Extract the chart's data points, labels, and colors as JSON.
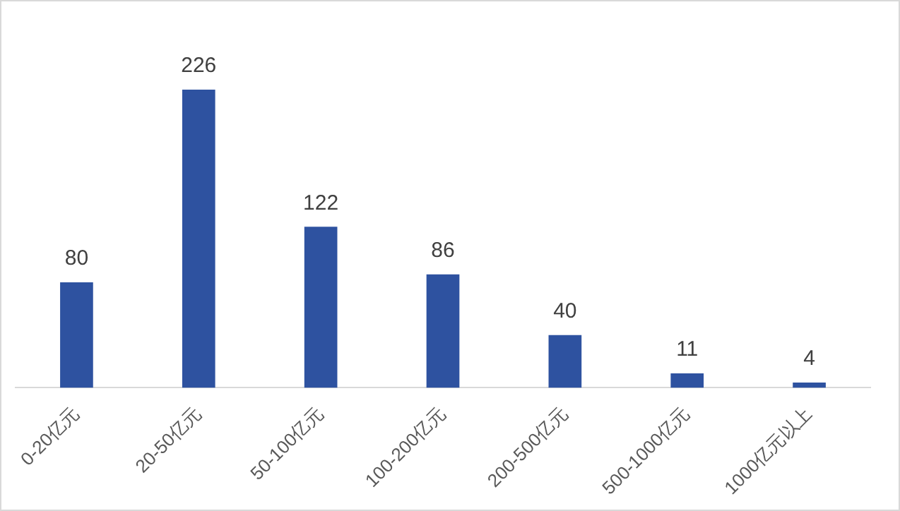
{
  "chart_data": {
    "type": "bar",
    "categories": [
      "0-20亿元",
      "20-50亿元",
      "50-100亿元",
      "100-200亿元",
      "200-500亿元",
      "500-1000亿元",
      "1000亿元以上"
    ],
    "values": [
      80,
      226,
      122,
      86,
      40,
      11,
      4
    ],
    "color": "#2e52a0",
    "data_labels": true,
    "grid": false,
    "legend": false
  }
}
